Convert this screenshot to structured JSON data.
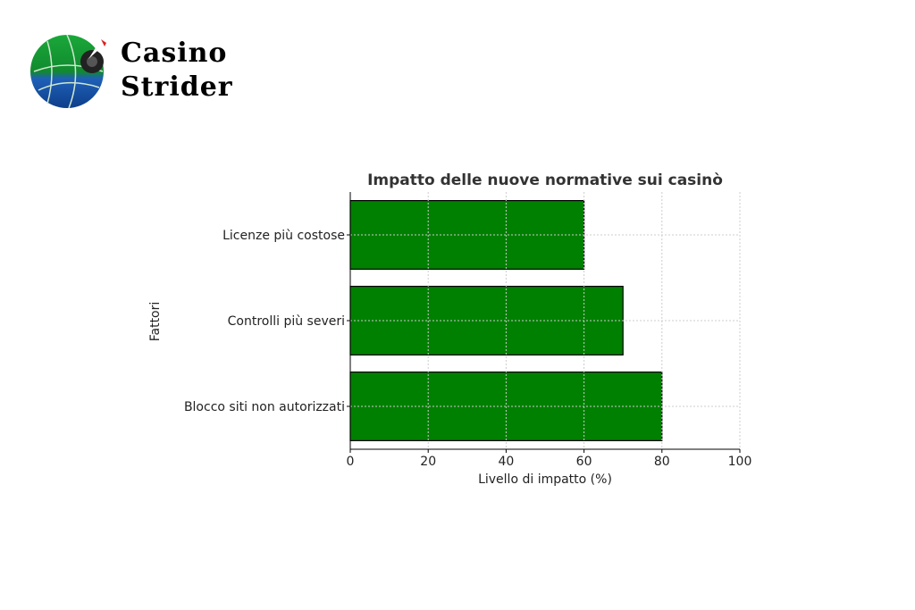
{
  "logo": {
    "line1": "Casino",
    "line2": "Strider"
  },
  "chart_data": {
    "type": "bar",
    "orientation": "horizontal",
    "title": "Impatto delle nuove normative sui casinò",
    "xlabel": "Livello di impatto (%)",
    "ylabel": "Fattori",
    "categories": [
      "Licenze più costose",
      "Controlli più severi",
      "Blocco siti non autorizzati"
    ],
    "values": [
      60,
      70,
      80
    ],
    "xlim": [
      0,
      100
    ],
    "xticks": [
      0,
      20,
      40,
      60,
      80,
      100
    ],
    "grid": true,
    "bar_color": "#008000",
    "edge_color": "#000000"
  }
}
